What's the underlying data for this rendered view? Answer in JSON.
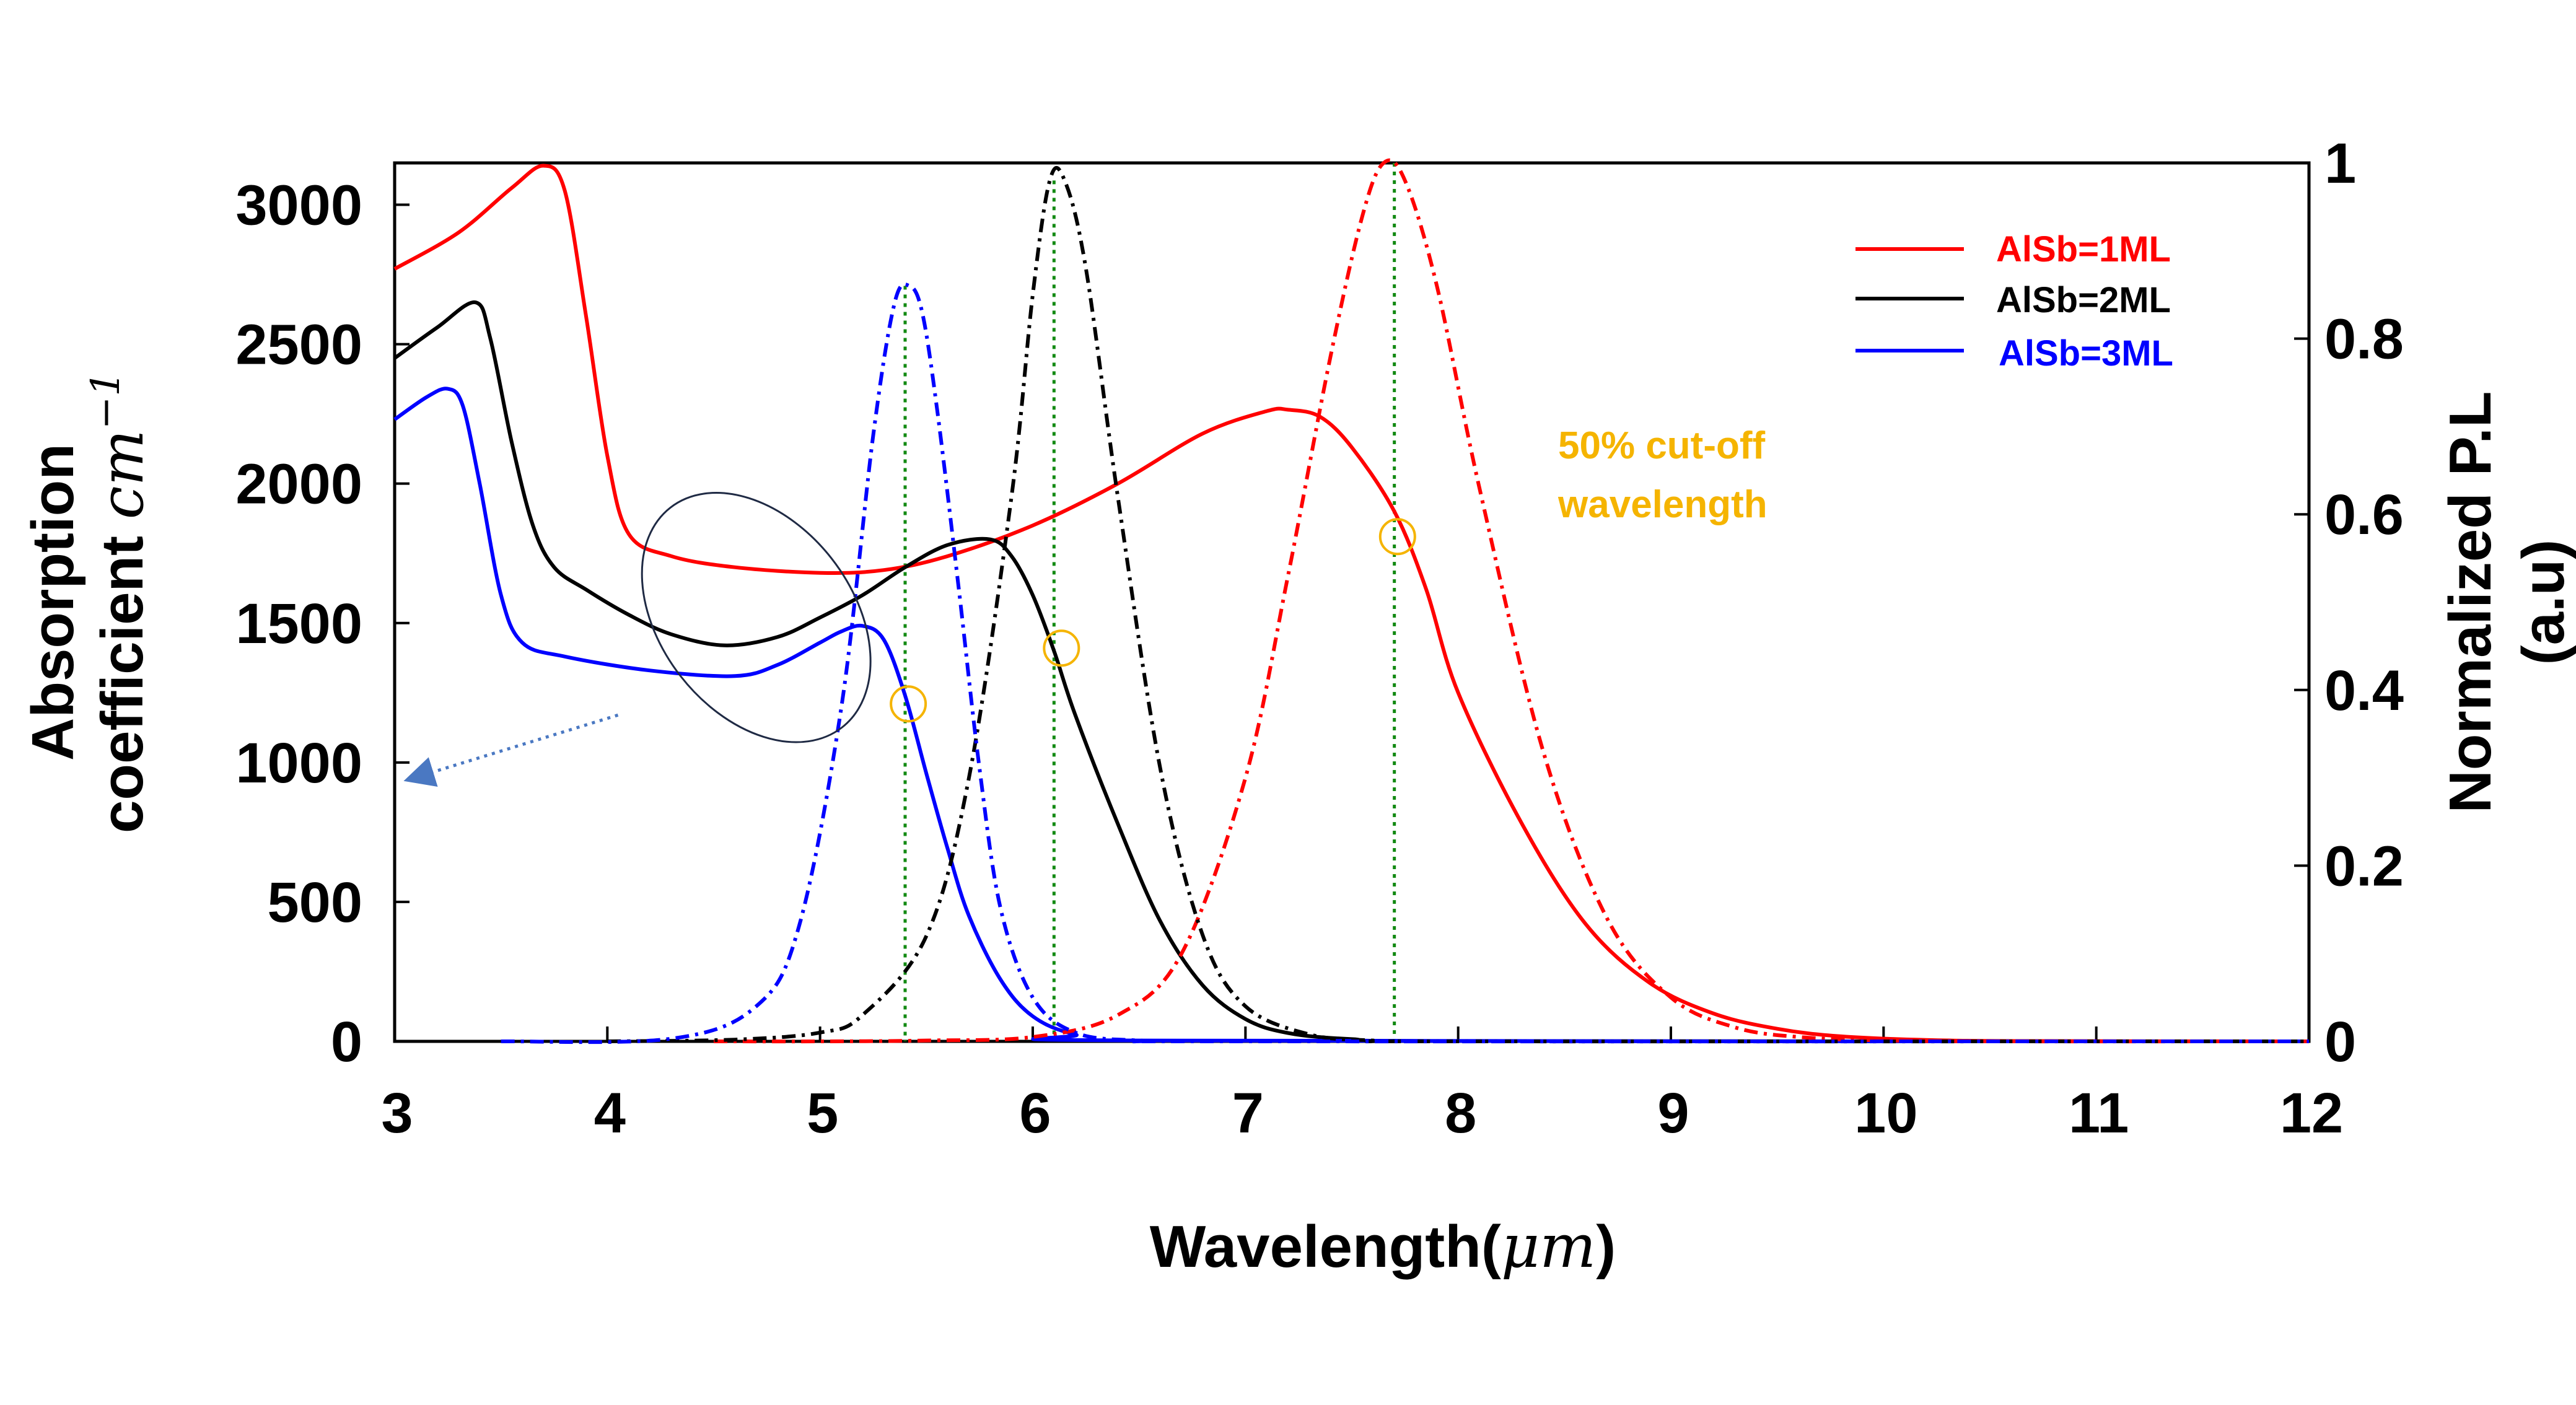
{
  "chart_data": {
    "type": "line",
    "title": "",
    "xlabel": "Wavelength(",
    "xlabel_unit": "μm",
    "ylabel_left_line1": "Absorption",
    "ylabel_left_line2": "coefficient ",
    "ylabel_left_unit": "cm",
    "ylabel_left_exp": "−1",
    "ylabel_right_line1": "Normalized P.L",
    "ylabel_right_line2": "(a.u)",
    "xlim": [
      3,
      12
    ],
    "ylim_left": [
      0,
      3150
    ],
    "ylim_right": [
      0,
      1
    ],
    "x_ticks": [
      3,
      4,
      5,
      6,
      7,
      8,
      9,
      10,
      11,
      12
    ],
    "y_ticks_left": [
      0,
      500,
      1000,
      1500,
      2000,
      2500,
      3000
    ],
    "y_ticks_right": [
      0,
      0.2,
      0.4,
      0.6,
      0.8,
      1
    ],
    "y_tick_labels_right": [
      "0",
      "0.2",
      "0.4",
      "0.6",
      "0.8",
      "1"
    ],
    "legend": [
      {
        "label": "AlSb=1ML",
        "color": "#ff0000"
      },
      {
        "label": "AlSb=2ML",
        "color": "#000000"
      },
      {
        "label": "AlSb=3ML",
        "color": "#0000ff"
      }
    ],
    "series": [
      {
        "name": "AlSb=1ML absorption",
        "axis": "left",
        "color": "#ff0000",
        "style": "solid",
        "x": [
          3.0,
          3.3,
          3.55,
          3.7,
          3.8,
          3.9,
          4.0,
          4.1,
          4.3,
          4.6,
          5.0,
          5.3,
          5.6,
          6.0,
          6.4,
          6.8,
          7.1,
          7.2,
          7.35,
          7.5,
          7.7,
          7.85,
          8.0,
          8.3,
          8.6,
          8.9,
          9.2,
          9.5,
          9.8,
          10.2,
          10.7,
          12.0
        ],
        "y": [
          2770,
          2900,
          3060,
          3140,
          3050,
          2600,
          2100,
          1820,
          1740,
          1700,
          1680,
          1690,
          1740,
          1850,
          2000,
          2180,
          2260,
          2265,
          2240,
          2130,
          1900,
          1620,
          1250,
          780,
          420,
          210,
          100,
          45,
          18,
          5,
          1,
          0
        ]
      },
      {
        "name": "AlSb=2ML absorption",
        "axis": "left",
        "color": "#000000",
        "style": "solid",
        "x": [
          3.0,
          3.2,
          3.38,
          3.45,
          3.55,
          3.65,
          3.75,
          3.9,
          4.1,
          4.3,
          4.55,
          4.8,
          5.0,
          5.2,
          5.4,
          5.6,
          5.8,
          5.9,
          6.0,
          6.1,
          6.2,
          6.4,
          6.6,
          6.8,
          7.0,
          7.2,
          7.5,
          8.0,
          12.0
        ],
        "y": [
          2450,
          2560,
          2650,
          2520,
          2150,
          1850,
          1700,
          1620,
          1530,
          1460,
          1420,
          1450,
          1520,
          1600,
          1700,
          1780,
          1800,
          1740,
          1600,
          1400,
          1170,
          780,
          430,
          200,
          80,
          30,
          8,
          1,
          0
        ]
      },
      {
        "name": "AlSb=3ML absorption",
        "axis": "left",
        "color": "#0000ff",
        "style": "solid",
        "x": [
          3.0,
          3.15,
          3.25,
          3.32,
          3.4,
          3.5,
          3.6,
          3.8,
          4.2,
          4.6,
          4.8,
          5.0,
          5.1,
          5.2,
          5.3,
          5.4,
          5.5,
          5.6,
          5.7,
          5.85,
          6.0,
          6.2,
          6.5,
          12.0
        ],
        "y": [
          2230,
          2310,
          2340,
          2280,
          2000,
          1600,
          1430,
          1380,
          1330,
          1310,
          1350,
          1430,
          1470,
          1490,
          1440,
          1240,
          960,
          690,
          450,
          220,
          90,
          25,
          3,
          0
        ]
      },
      {
        "name": "AlSb=1ML P.L",
        "axis": "right",
        "color": "#ff0000",
        "style": "dashdot",
        "x": [
          4.5,
          5.0,
          5.5,
          6.0,
          6.4,
          6.7,
          7.0,
          7.2,
          7.4,
          7.55,
          7.65,
          7.75,
          7.9,
          8.1,
          8.4,
          8.7,
          9.0,
          9.3,
          9.6,
          10.0,
          10.5,
          12.0
        ],
        "y": [
          0,
          0,
          0.001,
          0.005,
          0.03,
          0.1,
          0.3,
          0.53,
          0.78,
          0.94,
          1.0,
          0.98,
          0.86,
          0.63,
          0.33,
          0.14,
          0.05,
          0.016,
          0.005,
          0.001,
          0,
          0
        ]
      },
      {
        "name": "AlSb=2ML P.L",
        "axis": "right",
        "color": "#000000",
        "style": "dashdot",
        "x": [
          4.0,
          4.6,
          5.0,
          5.2,
          5.5,
          5.7,
          5.9,
          6.0,
          6.08,
          6.15,
          6.25,
          6.4,
          6.6,
          6.8,
          7.0,
          7.3,
          7.6,
          8.0,
          12.0
        ],
        "y": [
          0,
          0.002,
          0.01,
          0.03,
          0.12,
          0.3,
          0.62,
          0.85,
          0.98,
          0.98,
          0.88,
          0.62,
          0.31,
          0.12,
          0.04,
          0.008,
          0.001,
          0,
          0
        ]
      },
      {
        "name": "AlSb=3ML P.L",
        "axis": "right",
        "color": "#0000ff",
        "style": "dashdot",
        "x": [
          3.5,
          4.3,
          4.7,
          4.9,
          5.1,
          5.25,
          5.35,
          5.42,
          5.48,
          5.55,
          5.65,
          5.75,
          5.85,
          6.0,
          6.2,
          6.5,
          7.0,
          12.0
        ],
        "y": [
          0,
          0.003,
          0.04,
          0.13,
          0.38,
          0.69,
          0.84,
          0.86,
          0.83,
          0.72,
          0.52,
          0.31,
          0.15,
          0.05,
          0.01,
          0.001,
          0,
          0
        ]
      }
    ],
    "cutoff_lines": [
      {
        "x": 5.4,
        "y_top": 0.86
      },
      {
        "x": 6.1,
        "y_top": 0.98
      },
      {
        "x": 7.7,
        "y_top": 1.0
      }
    ],
    "cutoff_markers": [
      {
        "x": 5.38,
        "y": 1210
      },
      {
        "x": 6.1,
        "y": 1410
      },
      {
        "x": 7.68,
        "y": 1810
      }
    ],
    "annotation": {
      "line1": "50% cut-off",
      "line2": "wavelength",
      "color": "#f5b400"
    },
    "dashed_arrow": {
      "from_x": 4.05,
      "from_y": 1170,
      "to_x": 3.07,
      "to_y": 940
    },
    "ellipse": {
      "cx": 4.7,
      "cy": 1520,
      "rx_data": 0.45,
      "ry_data": 500
    }
  }
}
